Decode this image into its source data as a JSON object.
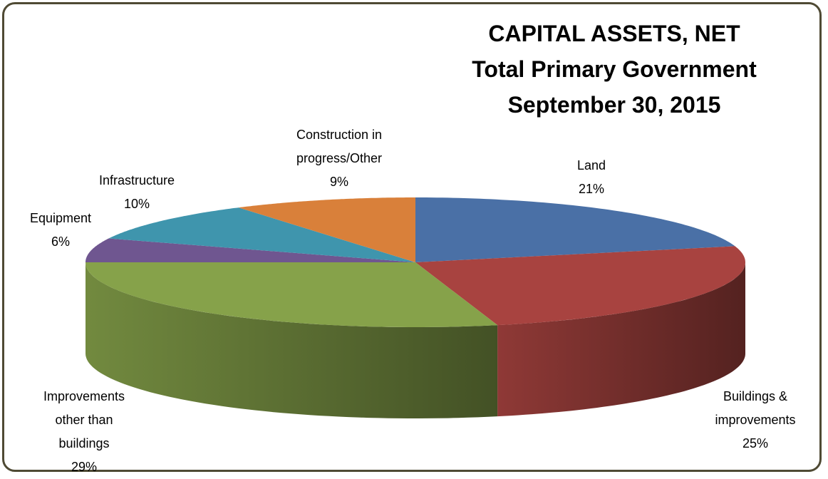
{
  "chart_data": {
    "type": "pie3d",
    "title": [
      "CAPITAL ASSETS, NET",
      "Total Primary Government",
      "September 30, 2015"
    ],
    "categories": [
      "Land",
      "Buildings & improvements",
      "Improvements other than buildings",
      "Equipment",
      "Infrastructure",
      "Construction in progress/Other"
    ],
    "values": [
      21,
      25,
      29,
      6,
      10,
      9
    ],
    "value_labels": [
      "21%",
      "25%",
      "29%",
      "6%",
      "10%",
      "9%"
    ],
    "colors": [
      "#4a70a6",
      "#a84340",
      "#86a24a",
      "#6f5690",
      "#3f95ad",
      "#d9803a"
    ]
  }
}
